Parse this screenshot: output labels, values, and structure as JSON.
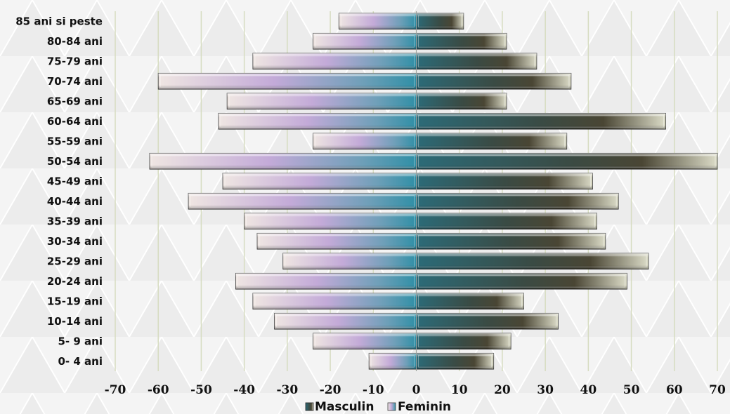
{
  "chart_data": {
    "type": "bar",
    "orientation": "horizontal",
    "subtype": "population-pyramid",
    "title": "",
    "xlabel": "",
    "ylabel": "",
    "xlim": [
      -70,
      70
    ],
    "x_ticks": [
      "-70",
      "-60",
      "-50",
      "-40",
      "-30",
      "-20",
      "-10",
      "0",
      "10",
      "20",
      "30",
      "40",
      "50",
      "60",
      "70"
    ],
    "grid": "vertical",
    "legend_position": "bottom",
    "categories": [
      "85 ani si peste",
      "80-84 ani",
      "75-79 ani",
      "70-74 ani",
      "65-69 ani",
      "60-64 ani",
      "55-59 ani",
      "50-54 ani",
      "45-49 ani",
      "40-44 ani",
      "35-39 ani",
      "30-34 ani",
      "25-29 ani",
      "20-24 ani",
      "15-19 ani",
      "10-14 ani",
      "5- 9 ani",
      "0- 4 ani"
    ],
    "series": [
      {
        "name": "Masculin",
        "color": "#3d6e72",
        "values": [
          11,
          21,
          28,
          36,
          21,
          58,
          35,
          70,
          41,
          47,
          42,
          44,
          54,
          49,
          25,
          33,
          22,
          18
        ]
      },
      {
        "name": "Feminin",
        "color": "#b9a8d8",
        "values": [
          -18,
          -24,
          -38,
          -60,
          -44,
          -46,
          -24,
          -62,
          -45,
          -53,
          -40,
          -37,
          -31,
          -42,
          -38,
          -33,
          -24,
          -11
        ]
      }
    ]
  }
}
